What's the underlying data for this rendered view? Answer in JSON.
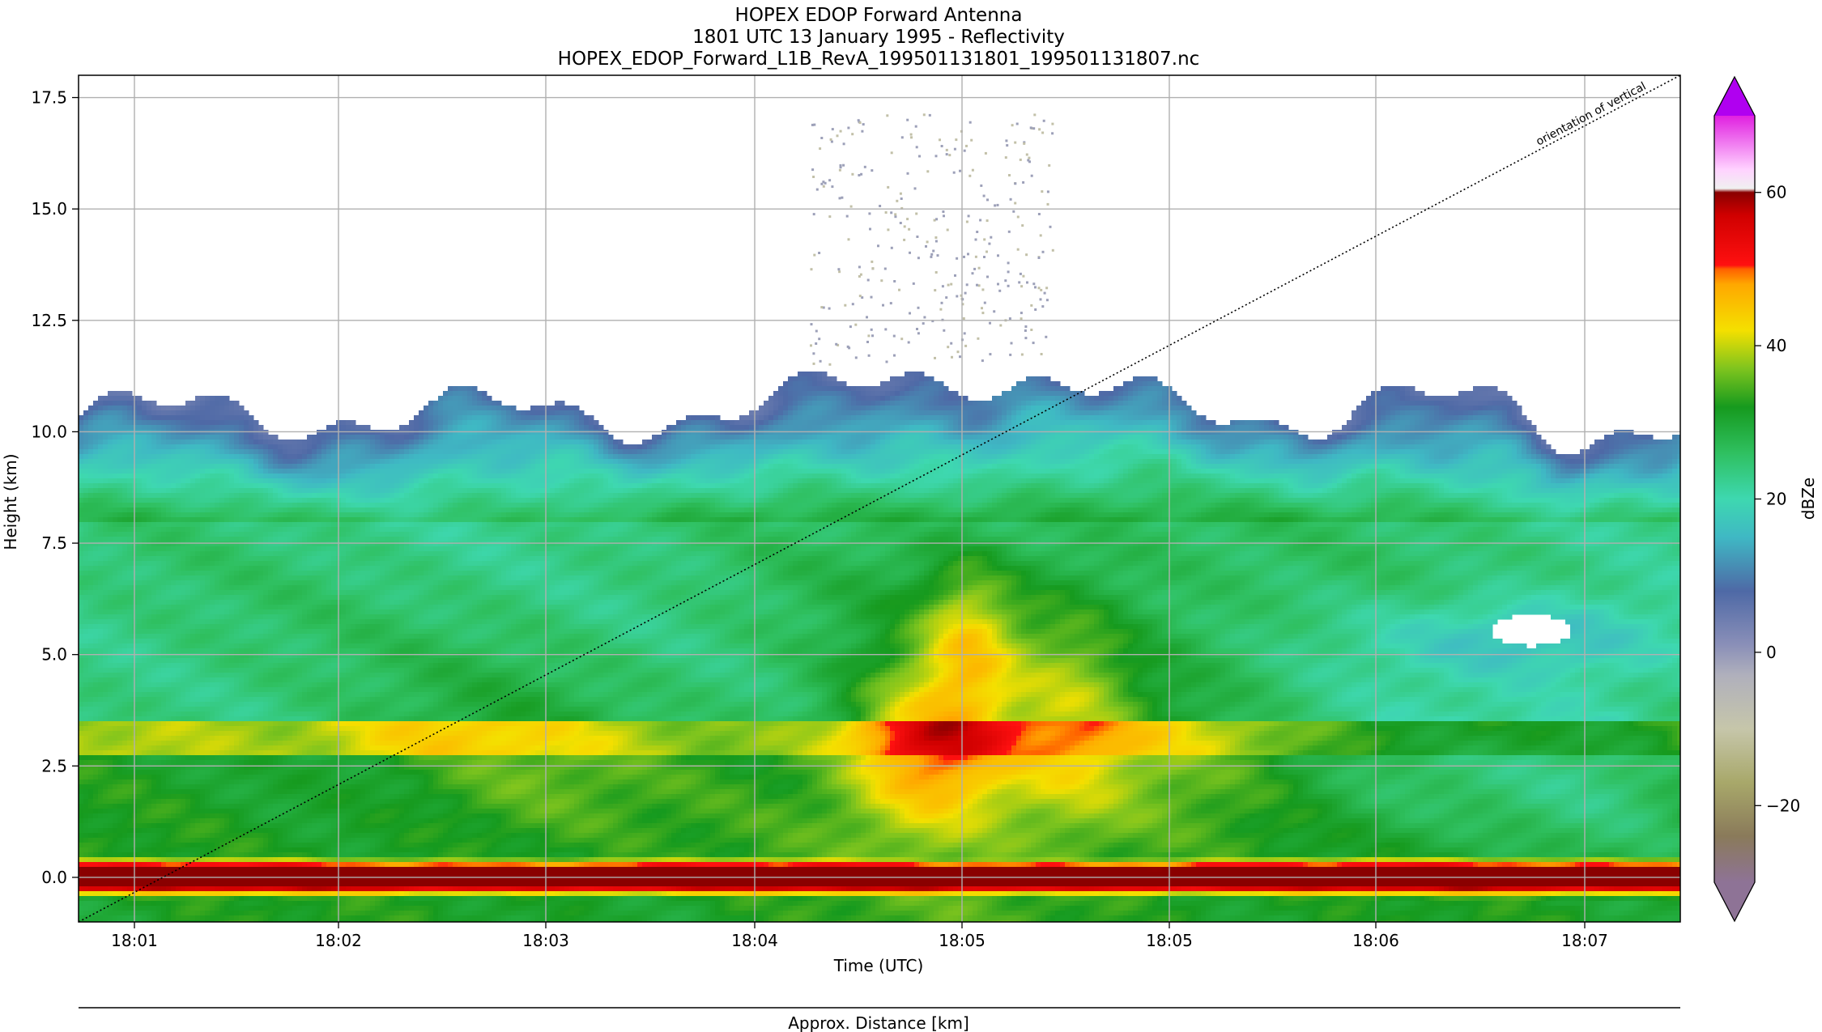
{
  "title": {
    "line1": "HOPEX EDOP Forward Antenna",
    "line2": "1801 UTC 13 January 1995 - Reflectivity",
    "line3": "HOPEX_EDOP_Forward_L1B_RevA_199501131801_199501131807.nc"
  },
  "chart_data": {
    "type": "heatmap",
    "title": "HOPEX EDOP Forward Antenna 1801 UTC 13 January 1995 - Reflectivity",
    "xlabel": "Time (UTC)",
    "ylabel": "Height (km)",
    "secondary_xlabel": "Approx. Distance [km]",
    "x_ticks": [
      "18:01",
      "18:02",
      "18:03",
      "18:04",
      "18:05",
      "18:05",
      "18:06",
      "18:07"
    ],
    "y_ticks": [
      0.0,
      2.5,
      5.0,
      7.5,
      10.0,
      12.5,
      15.0,
      17.5
    ],
    "y_tick_labels": [
      "0.0",
      "2.5",
      "5.0",
      "7.5",
      "10.0",
      "12.5",
      "15.0",
      "17.5"
    ],
    "ylim": [
      -1.0,
      18.0
    ],
    "grid": true,
    "annotation": "orientation of vertical",
    "colorbar": {
      "label": "dBZe",
      "range": [
        -30,
        70
      ],
      "ticks": [
        -20,
        0,
        20,
        40,
        60
      ],
      "tick_labels": [
        "−20",
        "0",
        "20",
        "40",
        "60"
      ],
      "extend": "both",
      "min_extend_color": "#8e7396",
      "max_extend_color": "#b000f0"
    },
    "echo_features": [
      {
        "name": "surface return",
        "height_km": [
          -0.4,
          0.6
        ],
        "dBZe": 55
      },
      {
        "name": "bright band",
        "height_km": [
          2.8,
          3.5
        ],
        "dBZe": 40
      },
      {
        "name": "convective core",
        "time": "18:04-18:05",
        "height_km": [
          1.5,
          7.0
        ],
        "dBZe": 52
      },
      {
        "name": "anvil top",
        "height_km": [
          10.0,
          11.5
        ],
        "dBZe": 8
      },
      {
        "name": "scattered returns above cloud",
        "time": "18:04-18:05",
        "height_km": [
          12.0,
          17.2
        ],
        "dBZe": 2
      }
    ]
  }
}
